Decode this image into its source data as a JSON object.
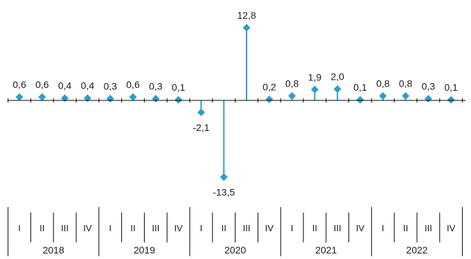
{
  "chart_data": {
    "type": "lollipop",
    "title": "",
    "xlabel": "",
    "ylabel": "",
    "colors": {
      "marker": "#2e9ec8",
      "axis": "#000000",
      "stem": "#2e9ec8"
    },
    "quarters": [
      "I",
      "II",
      "III",
      "IV"
    ],
    "years": [
      "2018",
      "2019",
      "2020",
      "2021",
      "2022"
    ],
    "values": [
      0.6,
      0.6,
      0.4,
      0.4,
      0.3,
      0.6,
      0.3,
      0.1,
      -2.1,
      -13.5,
      12.8,
      0.2,
      0.8,
      1.9,
      2.0,
      0.1,
      0.8,
      0.8,
      0.3,
      0.1
    ],
    "labels": [
      "0,6",
      "0,6",
      "0,4",
      "0,4",
      "0,3",
      "0,6",
      "0,3",
      "0,1",
      "-2,1",
      "-13,5",
      "12,8",
      "0,2",
      "0,8",
      "1,9",
      "2,0",
      "0,1",
      "0,8",
      "0,8",
      "0,3",
      "0,1"
    ],
    "ylim": [
      -13.5,
      12.8
    ],
    "grid": false,
    "legend": "none"
  }
}
